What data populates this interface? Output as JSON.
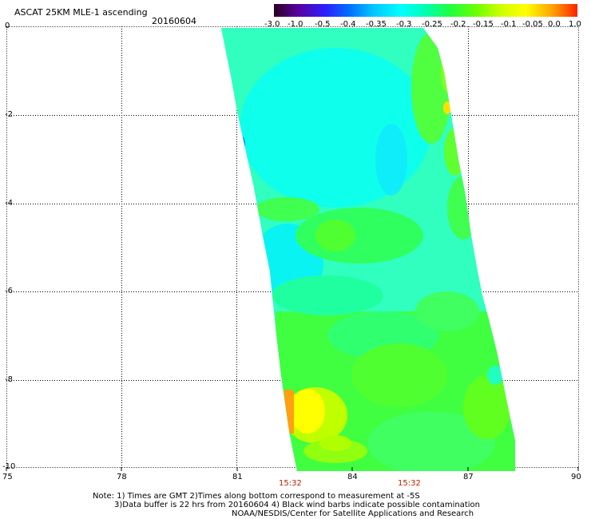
{
  "header": {
    "title": "ASCAT 25KM MLE-1 ascending",
    "date": "20160604"
  },
  "colorbar": {
    "labels": [
      "-3.0",
      "-1.0",
      "-0.5",
      "-0.4",
      "-0.35",
      "-0.3",
      "-0.25",
      "-0.2",
      "-0.15",
      "-0.1",
      "-0.05",
      "0.0",
      "1.0"
    ],
    "colors": [
      "#3a0030",
      "#6a00c8",
      "#3030ff",
      "#0080ff",
      "#00c0ff",
      "#00ffff",
      "#00ffc0",
      "#40ff60",
      "#60ff00",
      "#c0ff00",
      "#ffff00",
      "#ffa000",
      "#ff3000"
    ]
  },
  "axes": {
    "x_ticks": [
      "75",
      "78",
      "81",
      "84",
      "87",
      "90"
    ],
    "y_ticks": [
      "0",
      "-2",
      "-4",
      "-6",
      "-8",
      "-10"
    ],
    "time_labels": [
      "15:32",
      "15:32"
    ]
  },
  "notes": {
    "line1": "Note: 1) Times are GMT 2)Times along bottom correspond to measurement at -5S",
    "line2": "3)Data buffer is 22 hrs from 20160604 4) Black wind barbs indicate possible contamination",
    "line3": "NOAA/NESDIS/Center for Satellite Applications and Research"
  }
}
